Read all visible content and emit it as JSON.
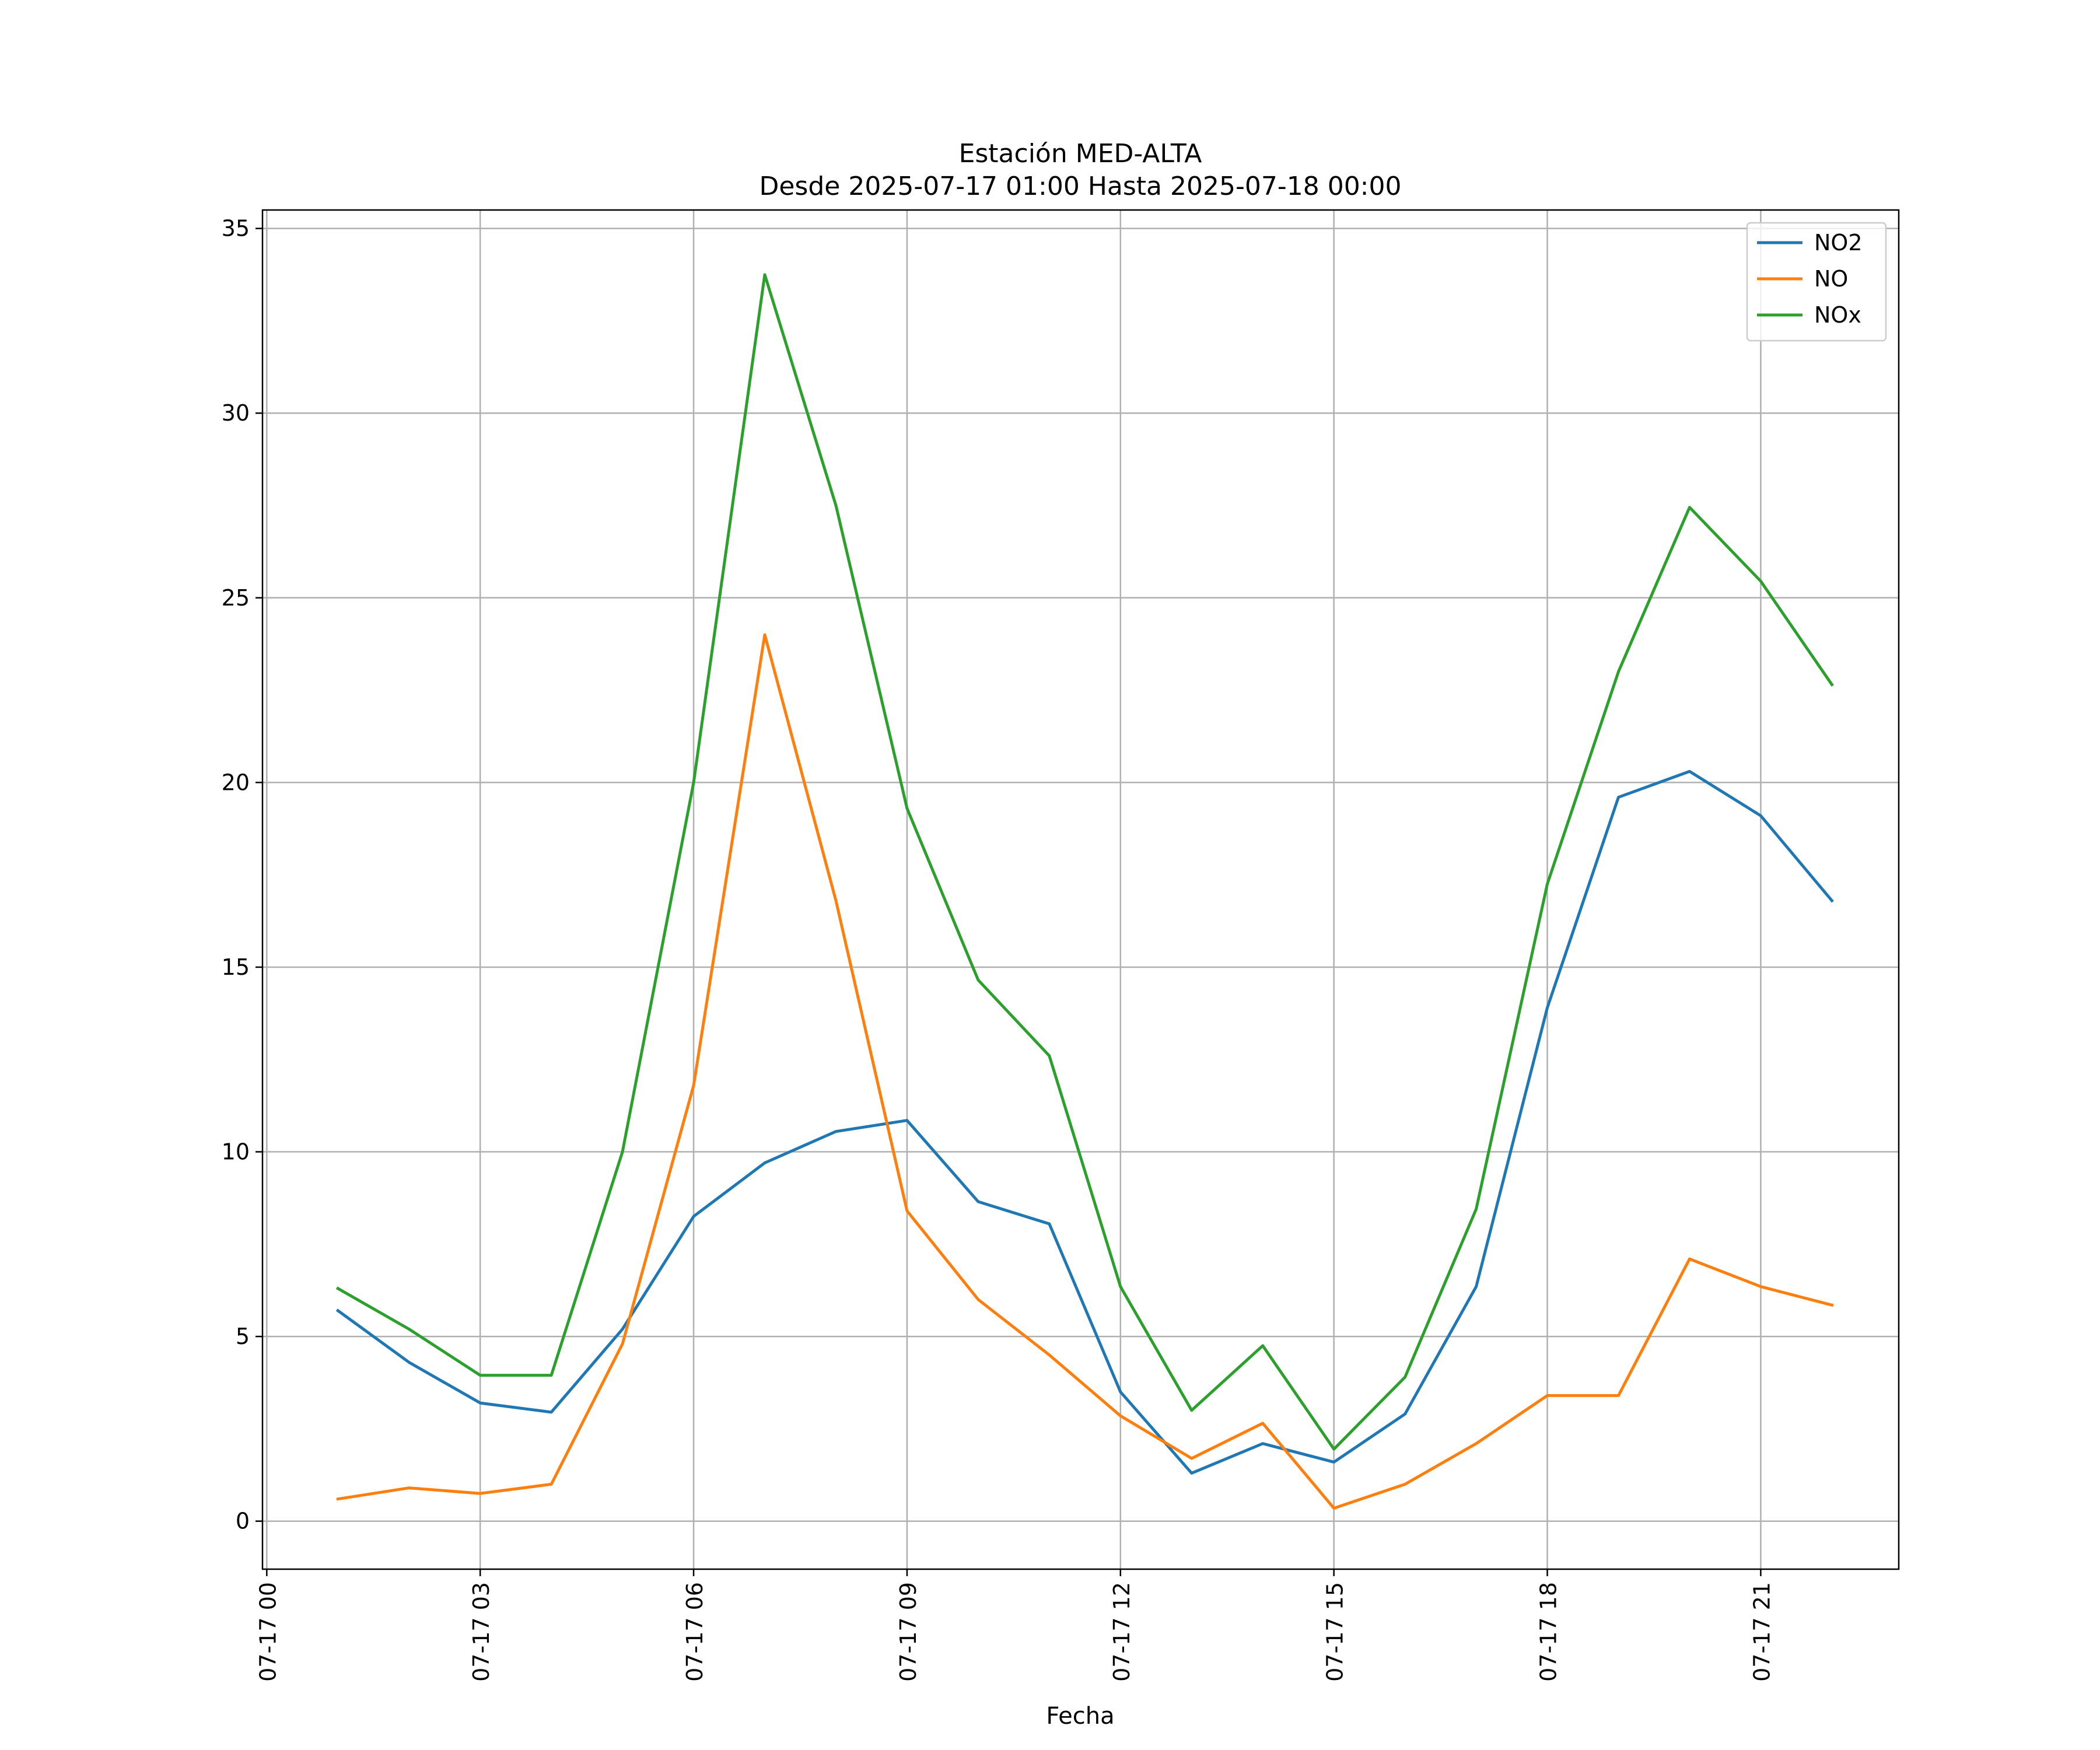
{
  "chart_data": {
    "type": "line",
    "title": "Estación MED-ALTA",
    "subtitle": "Desde 2025-07-17 01:00 Hasta 2025-07-18 00:00",
    "xlabel": "Fecha",
    "ylabel": "",
    "x": [
      "07-17 01",
      "07-17 02",
      "07-17 03",
      "07-17 04",
      "07-17 05",
      "07-17 06",
      "07-17 07",
      "07-17 08",
      "07-17 09",
      "07-17 10",
      "07-17 11",
      "07-17 12",
      "07-17 13",
      "07-17 14",
      "07-17 15",
      "07-17 16",
      "07-17 17",
      "07-17 18",
      "07-17 19",
      "07-17 20",
      "07-17 21",
      "07-17 22"
    ],
    "x_hours": [
      1,
      2,
      3,
      4,
      5,
      6,
      7,
      8,
      9,
      10,
      11,
      12,
      13,
      14,
      15,
      16,
      17,
      18,
      19,
      20,
      21,
      22
    ],
    "xlim_hours": [
      -0.06,
      22.94
    ],
    "ylim": [
      -1.3,
      35.5
    ],
    "x_ticks": [
      {
        "hour": 0,
        "label": "07-17 00"
      },
      {
        "hour": 3,
        "label": "07-17 03"
      },
      {
        "hour": 6,
        "label": "07-17 06"
      },
      {
        "hour": 9,
        "label": "07-17 09"
      },
      {
        "hour": 12,
        "label": "07-17 12"
      },
      {
        "hour": 15,
        "label": "07-17 15"
      },
      {
        "hour": 18,
        "label": "07-17 18"
      },
      {
        "hour": 21,
        "label": "07-17 21"
      }
    ],
    "y_ticks": [
      0,
      5,
      10,
      15,
      20,
      25,
      30,
      35
    ],
    "grid": true,
    "legend_position": "top-right",
    "series": [
      {
        "name": "NO2",
        "color": "#1f77b4",
        "values": [
          5.7,
          4.3,
          3.2,
          2.95,
          5.2,
          8.25,
          9.7,
          10.55,
          10.85,
          8.65,
          8.05,
          3.5,
          1.3,
          2.1,
          1.6,
          2.9,
          6.35,
          13.9,
          19.6,
          20.3,
          19.1,
          16.8
        ]
      },
      {
        "name": "NO",
        "color": "#ff7f0e",
        "values": [
          0.6,
          0.9,
          0.75,
          1.0,
          4.8,
          11.8,
          24.0,
          16.8,
          8.4,
          6.0,
          4.5,
          2.85,
          1.7,
          2.65,
          0.35,
          1.0,
          2.1,
          3.4,
          3.4,
          7.1,
          6.35,
          5.85
        ]
      },
      {
        "name": "NOx",
        "color": "#2ca02c",
        "values": [
          6.3,
          5.2,
          3.95,
          3.95,
          10.0,
          20.0,
          33.75,
          27.5,
          19.3,
          14.65,
          12.6,
          6.35,
          3.0,
          4.75,
          1.95,
          3.9,
          8.45,
          17.25,
          23.0,
          27.45,
          25.45,
          22.65
        ]
      }
    ]
  }
}
